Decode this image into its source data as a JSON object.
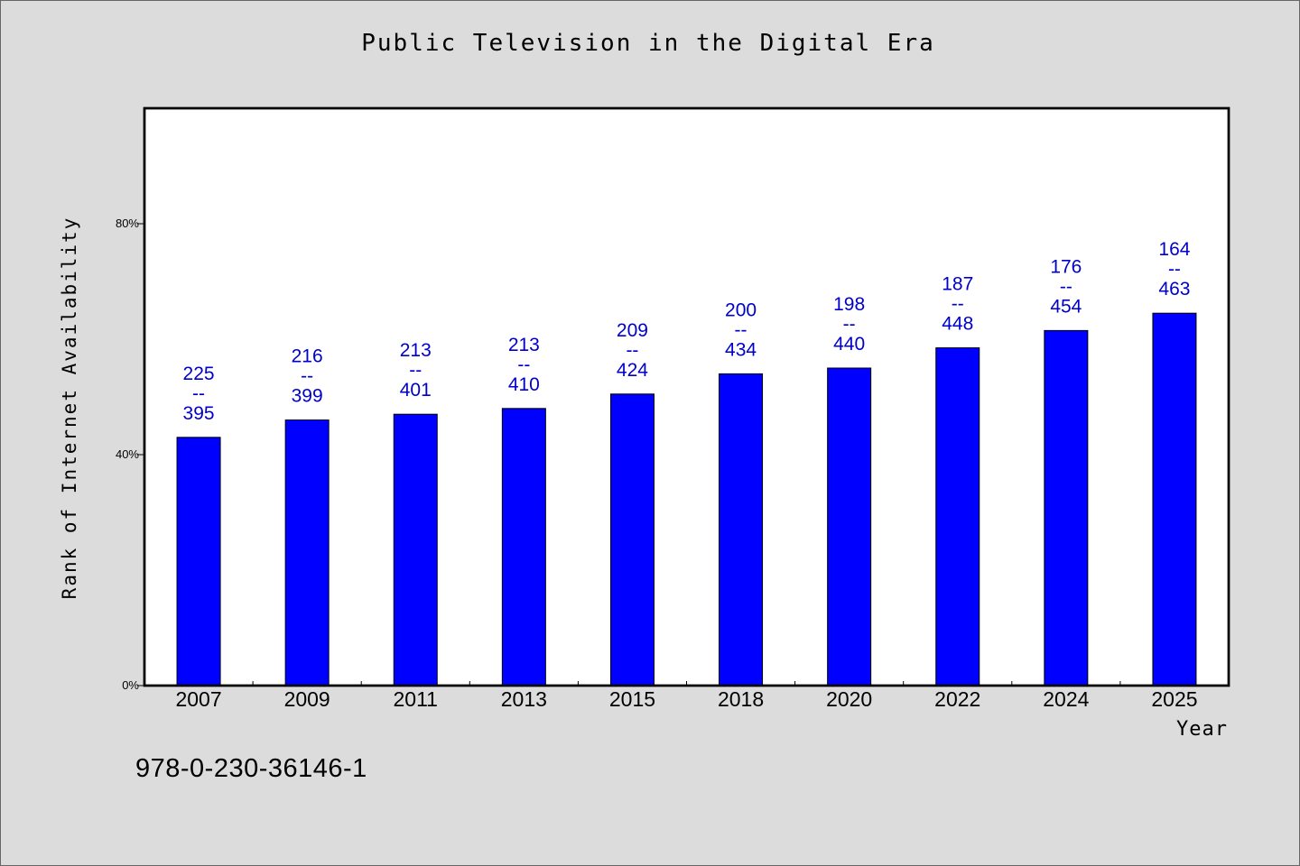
{
  "chart_data": {
    "type": "bar",
    "title": "Public Television in the Digital Era",
    "xlabel": "Year",
    "ylabel": "Rank of Internet Availability",
    "categories": [
      "2007",
      "2009",
      "2011",
      "2013",
      "2015",
      "2018",
      "2020",
      "2022",
      "2024",
      "2025"
    ],
    "values": [
      43,
      46,
      47,
      48,
      50.5,
      54,
      55,
      58.5,
      61.5,
      64.5
    ],
    "value_unit": "%",
    "ylim": [
      0,
      100
    ],
    "yticks": [
      {
        "value": 0,
        "label": "0%"
      },
      {
        "value": 40,
        "label": "40%"
      },
      {
        "value": 80,
        "label": "80%"
      }
    ],
    "data_labels": [
      {
        "top": "225",
        "mid": "--",
        "bottom": "395"
      },
      {
        "top": "216",
        "mid": "--",
        "bottom": "399"
      },
      {
        "top": "213",
        "mid": "--",
        "bottom": "401"
      },
      {
        "top": "213",
        "mid": "--",
        "bottom": "410"
      },
      {
        "top": "209",
        "mid": "--",
        "bottom": "424"
      },
      {
        "top": "200",
        "mid": "--",
        "bottom": "434"
      },
      {
        "top": "198",
        "mid": "--",
        "bottom": "440"
      },
      {
        "top": "187",
        "mid": "--",
        "bottom": "448"
      },
      {
        "top": "176",
        "mid": "--",
        "bottom": "454"
      },
      {
        "top": "164",
        "mid": "--",
        "bottom": "463"
      }
    ],
    "grid": false,
    "legend": "none",
    "colors": {
      "bar": "#0000ff",
      "label": "#0000cc",
      "background": "#dcdcdc",
      "plot_background": "#ffffff"
    }
  },
  "footnote": "978-0-230-36146-1"
}
